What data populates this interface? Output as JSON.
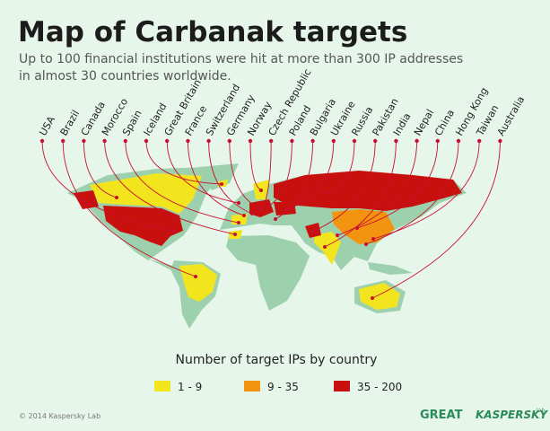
{
  "header": {
    "title": "Map of Carbanak targets",
    "subtitle": [
      "Up to 100 financial institutions were hit at more than 300 IP addresses",
      "in almost 30 countries worldwide."
    ]
  },
  "countries": [
    "USA",
    "Brazil",
    "Canada",
    "Morocco",
    "Spain",
    "Iceland",
    "Great Britain",
    "France",
    "Switzerland",
    "Germany",
    "Norway",
    "Czech Republic",
    "Poland",
    "Bulgaria",
    "Ukraine",
    "Russia",
    "Pakistan",
    "India",
    "Nepal",
    "China",
    "Hong Kong",
    "Taiwan",
    "Australia"
  ],
  "legend": {
    "title": "Number of target IPs by country",
    "items": [
      {
        "label": "1 - 9",
        "color": "#f2e51d"
      },
      {
        "label": "9 - 35",
        "color": "#f39410"
      },
      {
        "label": "35 - 200",
        "color": "#c8100f"
      }
    ]
  },
  "footer": {
    "copyright": "© 2014 Kaspersky Lab",
    "logos": [
      "GREAT",
      "KASPERSKY",
      "lab"
    ]
  }
}
